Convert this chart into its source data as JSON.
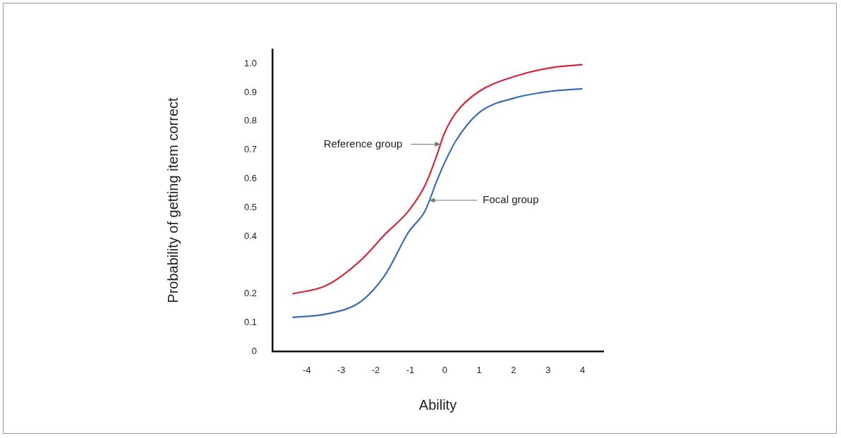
{
  "chart_data": {
    "type": "line",
    "xlabel": "Ability",
    "ylabel": "Probability of getting item correct",
    "xlim": [
      -5,
      4.6
    ],
    "xticks": [
      -4,
      -3,
      -2,
      -1,
      0,
      1,
      2,
      3,
      4
    ],
    "ylim": [
      0,
      1.05
    ],
    "yticks": [
      0,
      {
        "value": 0.1,
        "label": "0.1"
      },
      {
        "value": 0.2,
        "label": "0.2"
      },
      {
        "value": 0.4,
        "label": "0.4"
      },
      {
        "value": 0.5,
        "label": "0.5"
      },
      {
        "value": 0.6,
        "label": "0.6"
      },
      {
        "value": 0.7,
        "label": "0.7"
      },
      {
        "value": 0.8,
        "label": "0.8"
      },
      {
        "value": 0.9,
        "label": "0.9"
      },
      {
        "value": 1.0,
        "label": "1.0"
      }
    ],
    "grid": false,
    "legend": false,
    "marker": "none",
    "line_style": "solid",
    "x": [
      -4.4,
      -3.45,
      -2.43,
      -1.73,
      -1.05,
      -0.57,
      -0.23,
      -0.02,
      0.33,
      1.0,
      2.03,
      3.06,
      3.98
    ],
    "series": [
      {
        "color": "#d9263a",
        "values": [
          0.2,
          0.228,
          0.317,
          0.407,
          0.488,
          0.577,
          0.681,
          0.755,
          0.83,
          0.904,
          0.956,
          0.986,
          0.997
        ]
      },
      {
        "color": "#3a6cb4",
        "values": [
          0.118,
          0.129,
          0.173,
          0.265,
          0.414,
          0.488,
          0.592,
          0.651,
          0.733,
          0.83,
          0.881,
          0.904,
          0.913
        ]
      }
    ],
    "annotations": [
      {
        "text": "Reference group",
        "x": -0.12,
        "y": 0.72
      },
      {
        "text": "Focal group",
        "x": -0.45,
        "y": 0.525
      }
    ]
  }
}
